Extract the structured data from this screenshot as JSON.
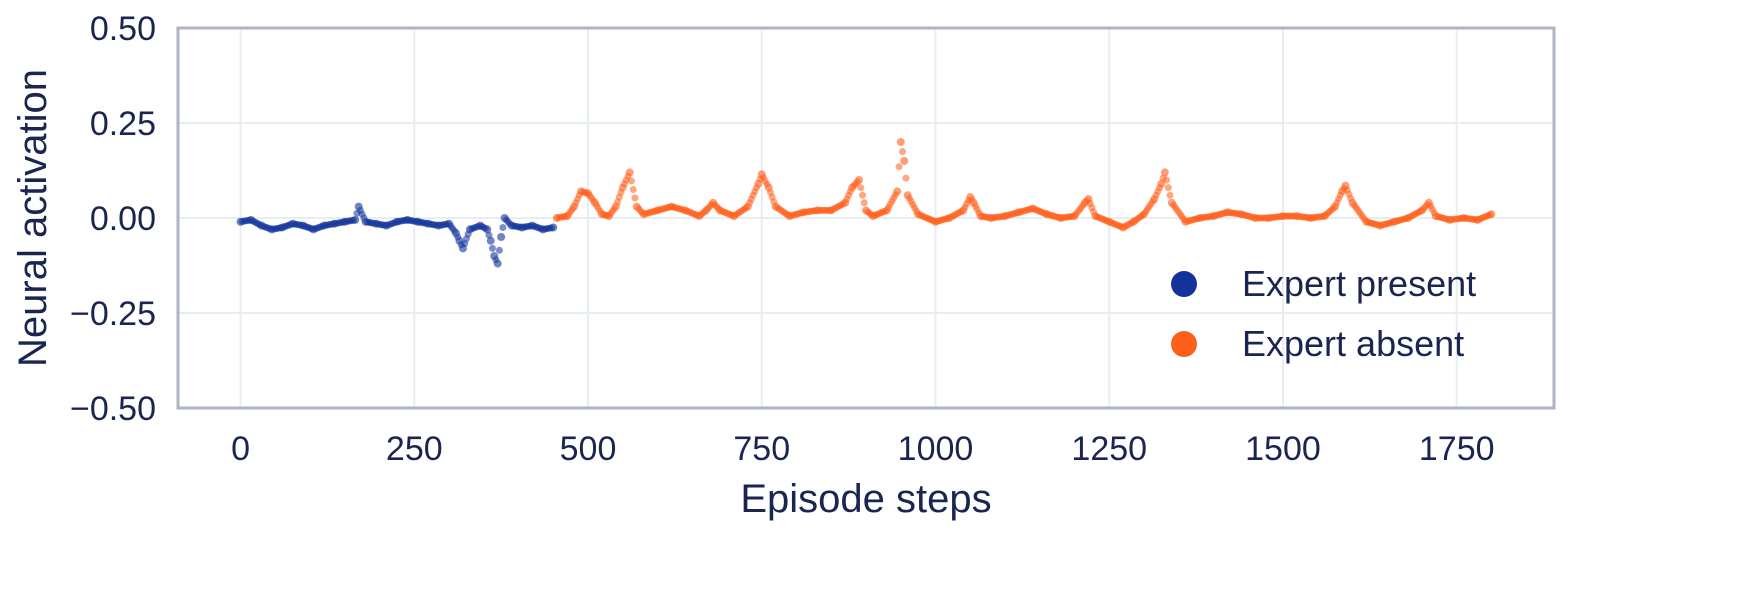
{
  "chart_data": {
    "type": "scatter",
    "xlabel": "Episode steps",
    "ylabel": "Neural activation",
    "xlim": [
      -90,
      1890
    ],
    "ylim": [
      -0.5,
      0.5
    ],
    "xticks": [
      0,
      250,
      500,
      750,
      1000,
      1250,
      1500,
      1750
    ],
    "xtick_labels": [
      "0",
      "250",
      "500",
      "750",
      "1000",
      "1250",
      "1500",
      "1750"
    ],
    "yticks": [
      0.5,
      0.25,
      0.0,
      -0.25,
      -0.5
    ],
    "ytick_labels": [
      "0.50",
      "0.25",
      "0.00",
      "−0.25",
      "−0.50"
    ],
    "grid": true,
    "legend_position": "lower-right",
    "series": [
      {
        "name": "Expert present",
        "color": "#13339a",
        "x": [
          0,
          15,
          30,
          45,
          60,
          75,
          90,
          105,
          120,
          135,
          150,
          165,
          170,
          180,
          195,
          210,
          225,
          240,
          255,
          270,
          285,
          300,
          310,
          315,
          320,
          330,
          345,
          355,
          360,
          365,
          370,
          375,
          380,
          390,
          405,
          420,
          435,
          450
        ],
        "y": [
          -0.01,
          -0.005,
          -0.02,
          -0.03,
          -0.025,
          -0.015,
          -0.02,
          -0.03,
          -0.02,
          -0.015,
          -0.01,
          -0.005,
          0.03,
          -0.01,
          -0.015,
          -0.02,
          -0.01,
          -0.005,
          -0.01,
          -0.015,
          -0.02,
          -0.015,
          -0.04,
          -0.06,
          -0.08,
          -0.03,
          -0.02,
          -0.03,
          -0.06,
          -0.1,
          -0.12,
          -0.05,
          0.0,
          -0.02,
          -0.025,
          -0.02,
          -0.03,
          -0.025
        ]
      },
      {
        "name": "Expert absent",
        "color": "#ff5e1a",
        "x": [
          455,
          470,
          480,
          490,
          500,
          510,
          520,
          530,
          540,
          550,
          560,
          570,
          580,
          600,
          620,
          640,
          660,
          670,
          680,
          690,
          710,
          730,
          745,
          750,
          760,
          770,
          790,
          810,
          830,
          850,
          870,
          880,
          890,
          900,
          910,
          930,
          945,
          950,
          955,
          960,
          975,
          1000,
          1020,
          1040,
          1050,
          1055,
          1065,
          1080,
          1100,
          1120,
          1140,
          1160,
          1180,
          1200,
          1215,
          1220,
          1230,
          1250,
          1270,
          1285,
          1300,
          1315,
          1325,
          1330,
          1340,
          1360,
          1380,
          1400,
          1420,
          1440,
          1460,
          1480,
          1500,
          1520,
          1540,
          1560,
          1575,
          1585,
          1590,
          1600,
          1620,
          1640,
          1660,
          1680,
          1700,
          1710,
          1720,
          1740,
          1760,
          1780,
          1800
        ],
        "y": [
          0.0,
          0.005,
          0.03,
          0.07,
          0.065,
          0.04,
          0.01,
          0.005,
          0.03,
          0.08,
          0.12,
          0.03,
          0.01,
          0.02,
          0.03,
          0.02,
          0.005,
          0.02,
          0.04,
          0.02,
          0.005,
          0.03,
          0.09,
          0.115,
          0.08,
          0.03,
          0.005,
          0.015,
          0.02,
          0.02,
          0.04,
          0.08,
          0.1,
          0.02,
          0.005,
          0.02,
          0.07,
          0.2,
          0.15,
          0.06,
          0.01,
          -0.01,
          0.0,
          0.02,
          0.055,
          0.04,
          0.005,
          0.0,
          0.005,
          0.015,
          0.025,
          0.01,
          0.0,
          0.005,
          0.04,
          0.05,
          0.005,
          -0.01,
          -0.025,
          -0.01,
          0.01,
          0.05,
          0.09,
          0.12,
          0.04,
          -0.01,
          0.0,
          0.005,
          0.015,
          0.01,
          0.0,
          0.0,
          0.005,
          0.005,
          0.0,
          0.005,
          0.03,
          0.07,
          0.085,
          0.04,
          -0.01,
          -0.02,
          -0.01,
          0.0,
          0.02,
          0.04,
          0.005,
          -0.005,
          0.0,
          -0.005,
          0.01
        ]
      }
    ]
  }
}
